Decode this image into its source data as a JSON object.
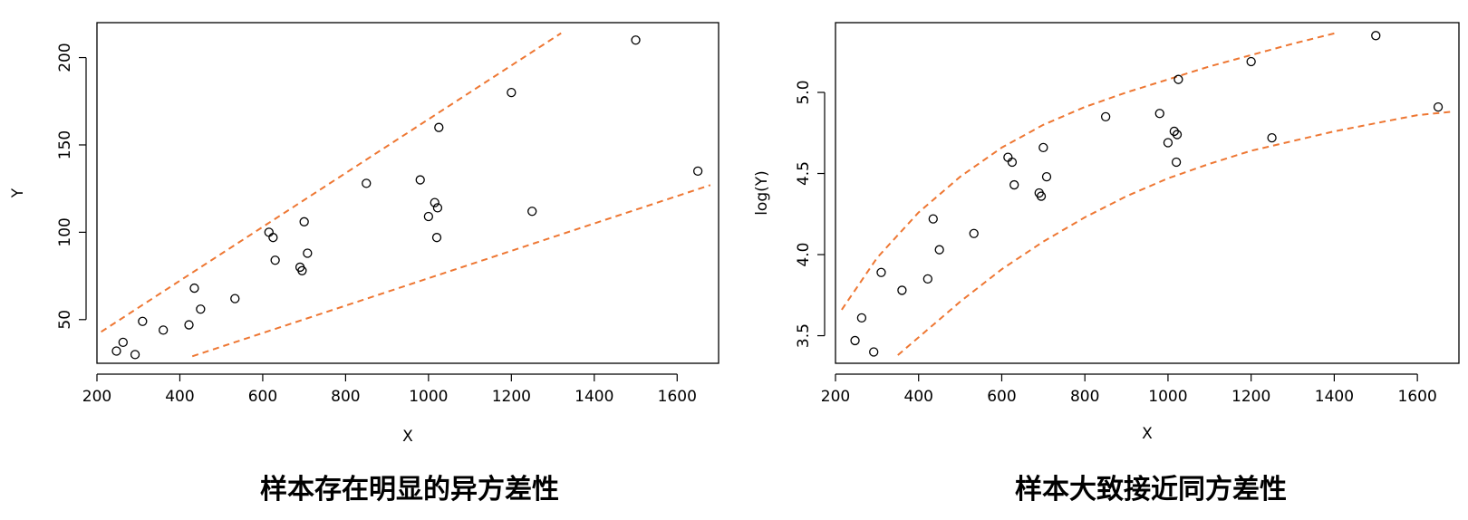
{
  "styles": {
    "point_color": "#000000",
    "band_color": "#ee7733"
  },
  "chart_data": [
    {
      "type": "scatter",
      "caption": "样本存在明显的异方差性",
      "xlabel": "X",
      "ylabel": "Y",
      "xlim": [
        200,
        1700
      ],
      "ylim": [
        25,
        220
      ],
      "x_ticks": [
        200,
        400,
        600,
        800,
        1000,
        1200,
        1400,
        1600
      ],
      "y_ticks": [
        50,
        100,
        150,
        200
      ],
      "grid": false,
      "points": [
        [
          247,
          32
        ],
        [
          263,
          37
        ],
        [
          292,
          30
        ],
        [
          310,
          49
        ],
        [
          360,
          44
        ],
        [
          422,
          47
        ],
        [
          435,
          68
        ],
        [
          450,
          56
        ],
        [
          533,
          62
        ],
        [
          615,
          100
        ],
        [
          625,
          97
        ],
        [
          630,
          84
        ],
        [
          690,
          80
        ],
        [
          695,
          78
        ],
        [
          700,
          106
        ],
        [
          708,
          88
        ],
        [
          850,
          128
        ],
        [
          980,
          130
        ],
        [
          1000,
          109
        ],
        [
          1015,
          117
        ],
        [
          1020,
          97
        ],
        [
          1022,
          114
        ],
        [
          1025,
          160
        ],
        [
          1200,
          180
        ],
        [
          1250,
          112
        ],
        [
          1500,
          210
        ],
        [
          1650,
          135
        ]
      ],
      "bands": [
        {
          "x": [
            210,
            1320
          ],
          "y": [
            43,
            214
          ]
        },
        {
          "x": [
            430,
            1680
          ],
          "y": [
            29,
            127
          ]
        }
      ]
    },
    {
      "type": "scatter",
      "caption": "样本大致接近同方差性",
      "xlabel": "X",
      "ylabel": "log(Y)",
      "xlim": [
        200,
        1700
      ],
      "ylim": [
        3.33,
        5.43
      ],
      "x_ticks": [
        200,
        400,
        600,
        800,
        1000,
        1200,
        1400,
        1600
      ],
      "y_ticks": [
        3.5,
        4.0,
        4.5,
        5.0
      ],
      "y_tick_labels": [
        "3.5",
        "4.0",
        "4.5",
        "5.0"
      ],
      "grid": false,
      "points": [
        [
          247,
          3.47
        ],
        [
          263,
          3.61
        ],
        [
          292,
          3.4
        ],
        [
          310,
          3.89
        ],
        [
          360,
          3.78
        ],
        [
          422,
          3.85
        ],
        [
          435,
          4.22
        ],
        [
          450,
          4.03
        ],
        [
          533,
          4.13
        ],
        [
          615,
          4.6
        ],
        [
          625,
          4.57
        ],
        [
          630,
          4.43
        ],
        [
          690,
          4.38
        ],
        [
          695,
          4.36
        ],
        [
          700,
          4.66
        ],
        [
          708,
          4.48
        ],
        [
          850,
          4.85
        ],
        [
          980,
          4.87
        ],
        [
          1000,
          4.69
        ],
        [
          1015,
          4.76
        ],
        [
          1020,
          4.57
        ],
        [
          1022,
          4.74
        ],
        [
          1025,
          5.08
        ],
        [
          1200,
          5.19
        ],
        [
          1250,
          4.72
        ],
        [
          1500,
          5.35
        ],
        [
          1650,
          4.91
        ]
      ],
      "bands": [
        {
          "x": [
            215,
            300,
            400,
            500,
            600,
            700,
            800,
            900,
            1000,
            1100,
            1200,
            1300,
            1410
          ],
          "y": [
            3.66,
            3.98,
            4.26,
            4.48,
            4.66,
            4.8,
            4.91,
            5.0,
            5.08,
            5.16,
            5.23,
            5.3,
            5.37
          ]
        },
        {
          "x": [
            350,
            400,
            500,
            600,
            700,
            800,
            900,
            1000,
            1100,
            1200,
            1300,
            1400,
            1500,
            1600,
            1680
          ],
          "y": [
            3.38,
            3.49,
            3.71,
            3.91,
            4.08,
            4.23,
            4.36,
            4.47,
            4.56,
            4.64,
            4.7,
            4.76,
            4.81,
            4.86,
            4.88
          ]
        }
      ]
    }
  ]
}
